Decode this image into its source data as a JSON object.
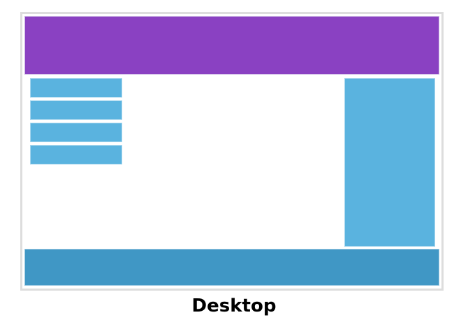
{
  "caption": "Desktop",
  "colors": {
    "header": "#8a41c2",
    "nav_items": "#5ab3df",
    "sidebar": "#5ab3df",
    "footer": "#4097c5",
    "frame_border": "#dddddd"
  },
  "layout_name": "desktop-layout-diagram"
}
